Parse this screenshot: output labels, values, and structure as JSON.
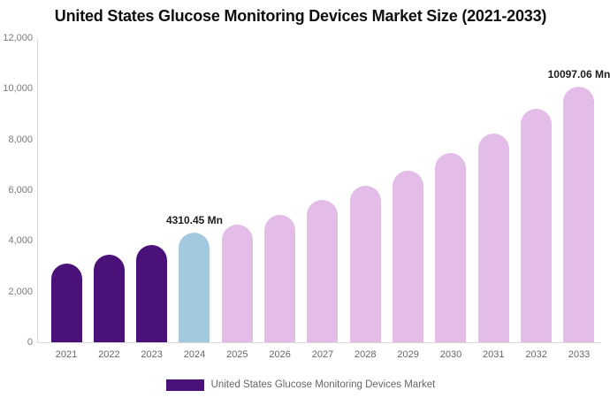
{
  "chart_data": {
    "type": "bar",
    "title": "United States Glucose Monitoring Devices Market Size (2021-2033)",
    "unit": "Mn",
    "categories": [
      "2021",
      "2022",
      "2023",
      "2024",
      "2025",
      "2026",
      "2027",
      "2028",
      "2029",
      "2030",
      "2031",
      "2032",
      "2033"
    ],
    "values": [
      3090,
      3460,
      3830,
      4310.45,
      4630,
      5010,
      5630,
      6190,
      6780,
      7480,
      8250,
      9200,
      10097.06
    ],
    "bar_colors": [
      "#4A1278",
      "#4A1278",
      "#4A1278",
      "#A3C9DF",
      "#E3BCE8",
      "#E3BCE8",
      "#E3BCE8",
      "#E3BCE8",
      "#E3BCE8",
      "#E3BCE8",
      "#E3BCE8",
      "#E3BCE8",
      "#E3BCE8"
    ],
    "ylim": [
      0,
      12000
    ],
    "yticks": [
      {
        "value": 0,
        "label": "0"
      },
      {
        "value": 2000,
        "label": "2,000"
      },
      {
        "value": 4000,
        "label": "4,000"
      },
      {
        "value": 6000,
        "label": "6,000"
      },
      {
        "value": 8000,
        "label": "8,000"
      },
      {
        "value": 10000,
        "label": "10,000"
      },
      {
        "value": 12000,
        "label": "12,000"
      }
    ],
    "grid": "none",
    "legend_position": "bottom",
    "legend_label": "United States Glucose Monitoring Devices Market",
    "data_labels": [
      {
        "category": "2024",
        "text": "4310.45 Mn"
      },
      {
        "category": "2033",
        "text": "10097.06 Mn"
      }
    ],
    "colors": {
      "historical_bar": "#4A1278",
      "base_year_bar": "#A3C9DF",
      "forecast_bar": "#E3BCE8",
      "axis_line": "#D9D9D9",
      "tick_text": "#7A7A7A",
      "xlabel_text": "#666666",
      "legend_text": "#666666",
      "data_label_text": "#1D1D1D",
      "title_text": "#0F0F0F",
      "background": "#FFFFFF"
    }
  }
}
